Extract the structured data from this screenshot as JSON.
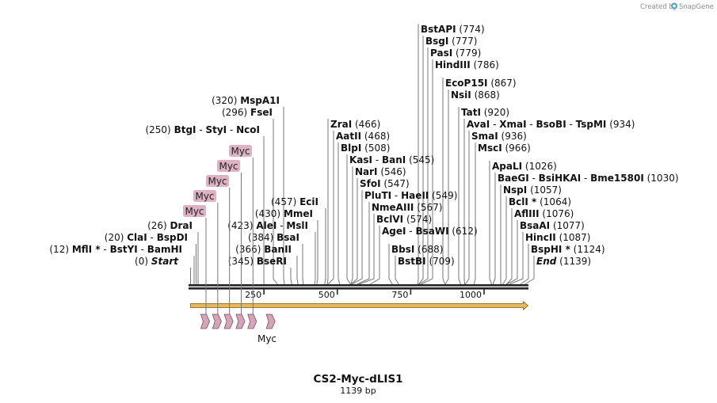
{
  "credit": {
    "text": "Created by",
    "brand": "SnapGene"
  },
  "title": "CS2-Myc-dLIS1",
  "length_label": "1139 bp",
  "sequence_length": 1139,
  "axis_ticks": [
    {
      "value": 250,
      "label": "250"
    },
    {
      "value": 500,
      "label": "500"
    },
    {
      "value": 750,
      "label": "750"
    },
    {
      "value": 1000,
      "label": "1000"
    }
  ],
  "colors": {
    "backbone": "#222222",
    "leader": "#777777",
    "myc_fill": "#d4a5b8",
    "myc_stroke": "#7a4a62",
    "orf_fill": "#e8b860",
    "orf_stroke": "#7a5a10",
    "tag_fill": "#dcb2c4"
  },
  "left_sites": [
    {
      "pos": 0,
      "position_label": "(0)",
      "parts": [
        {
          "name": "Start",
          "italic": true
        }
      ]
    },
    {
      "pos": 12,
      "position_label": "(12)",
      "parts": [
        {
          "name": "MflI",
          "star": true
        },
        {
          "name": "BstYI"
        },
        {
          "name": "BamHI"
        }
      ]
    },
    {
      "pos": 20,
      "position_label": "(20)",
      "parts": [
        {
          "name": "ClaI"
        },
        {
          "name": "BspDI"
        }
      ]
    },
    {
      "pos": 26,
      "position_label": "(26)",
      "parts": [
        {
          "name": "DraI"
        }
      ]
    },
    {
      "pos": 250,
      "position_label": "(250)",
      "parts": [
        {
          "name": "BtgI"
        },
        {
          "name": "StyI"
        },
        {
          "name": "NcoI"
        }
      ]
    },
    {
      "pos": 296,
      "position_label": "(296)",
      "parts": [
        {
          "name": "FseI"
        }
      ]
    },
    {
      "pos": 320,
      "position_label": "(320)",
      "parts": [
        {
          "name": "MspA1I"
        }
      ]
    },
    {
      "pos": 345,
      "position_label": "(345)",
      "parts": [
        {
          "name": "BseRI"
        }
      ]
    },
    {
      "pos": 366,
      "position_label": "(366)",
      "parts": [
        {
          "name": "BanII"
        }
      ]
    },
    {
      "pos": 384,
      "position_label": "(384)",
      "parts": [
        {
          "name": "BsaI"
        }
      ]
    },
    {
      "pos": 423,
      "position_label": "(423)",
      "parts": [
        {
          "name": "AleI"
        },
        {
          "name": "MslI"
        }
      ]
    },
    {
      "pos": 430,
      "position_label": "(430)",
      "parts": [
        {
          "name": "MmeI"
        }
      ]
    },
    {
      "pos": 457,
      "position_label": "(457)",
      "parts": [
        {
          "name": "EciI"
        }
      ]
    }
  ],
  "right_sites": [
    {
      "pos": 466,
      "position_label": "(466)",
      "parts": [
        {
          "name": "ZraI"
        }
      ]
    },
    {
      "pos": 468,
      "position_label": "(468)",
      "parts": [
        {
          "name": "AatII"
        }
      ]
    },
    {
      "pos": 508,
      "position_label": "(508)",
      "parts": [
        {
          "name": "BlpI"
        }
      ]
    },
    {
      "pos": 545,
      "position_label": "(545)",
      "parts": [
        {
          "name": "KasI"
        },
        {
          "name": "BanI"
        }
      ]
    },
    {
      "pos": 546,
      "position_label": "(546)",
      "parts": [
        {
          "name": "NarI"
        }
      ]
    },
    {
      "pos": 547,
      "position_label": "(547)",
      "parts": [
        {
          "name": "SfoI"
        }
      ]
    },
    {
      "pos": 549,
      "position_label": "(549)",
      "parts": [
        {
          "name": "PluTI"
        },
        {
          "name": "HaeII"
        }
      ]
    },
    {
      "pos": 567,
      "position_label": "(567)",
      "parts": [
        {
          "name": "NmeAIII"
        }
      ]
    },
    {
      "pos": 574,
      "position_label": "(574)",
      "parts": [
        {
          "name": "BclVI"
        }
      ]
    },
    {
      "pos": 612,
      "position_label": "(612)",
      "parts": [
        {
          "name": "AgeI"
        },
        {
          "name": "BsaWI"
        }
      ]
    },
    {
      "pos": 688,
      "position_label": "(688)",
      "parts": [
        {
          "name": "BbsI"
        }
      ]
    },
    {
      "pos": 709,
      "position_label": "(709)",
      "parts": [
        {
          "name": "BstBI"
        }
      ]
    },
    {
      "pos": 774,
      "position_label": "(774)",
      "parts": [
        {
          "name": "BstAPI"
        }
      ]
    },
    {
      "pos": 777,
      "position_label": "(777)",
      "parts": [
        {
          "name": "BsgI"
        }
      ]
    },
    {
      "pos": 779,
      "position_label": "(779)",
      "parts": [
        {
          "name": "PasI"
        }
      ]
    },
    {
      "pos": 786,
      "position_label": "(786)",
      "parts": [
        {
          "name": "HindIII"
        }
      ]
    },
    {
      "pos": 867,
      "position_label": "(867)",
      "parts": [
        {
          "name": "EcoP15I"
        }
      ]
    },
    {
      "pos": 868,
      "position_label": "(868)",
      "parts": [
        {
          "name": "NsiI"
        }
      ]
    },
    {
      "pos": 920,
      "position_label": "(920)",
      "parts": [
        {
          "name": "TatI"
        }
      ]
    },
    {
      "pos": 934,
      "position_label": "(934)",
      "parts": [
        {
          "name": "AvaI"
        },
        {
          "name": "XmaI"
        },
        {
          "name": "BsoBI"
        },
        {
          "name": "TspMI"
        }
      ]
    },
    {
      "pos": 936,
      "position_label": "(936)",
      "parts": [
        {
          "name": "SmaI"
        }
      ]
    },
    {
      "pos": 966,
      "position_label": "(966)",
      "parts": [
        {
          "name": "MscI"
        }
      ]
    },
    {
      "pos": 1026,
      "position_label": "(1026)",
      "parts": [
        {
          "name": "ApaLI"
        }
      ]
    },
    {
      "pos": 1030,
      "position_label": "(1030)",
      "parts": [
        {
          "name": "BaeGI"
        },
        {
          "name": "BsiHKAI"
        },
        {
          "name": "Bme1580I"
        }
      ]
    },
    {
      "pos": 1057,
      "position_label": "(1057)",
      "parts": [
        {
          "name": "NspI"
        }
      ]
    },
    {
      "pos": 1064,
      "position_label": "(1064)",
      "parts": [
        {
          "name": "BclI",
          "star": true
        }
      ]
    },
    {
      "pos": 1076,
      "position_label": "(1076)",
      "parts": [
        {
          "name": "AflIII"
        }
      ]
    },
    {
      "pos": 1077,
      "position_label": "(1077)",
      "parts": [
        {
          "name": "BsaAI"
        }
      ]
    },
    {
      "pos": 1087,
      "position_label": "(1087)",
      "parts": [
        {
          "name": "HincII"
        }
      ]
    },
    {
      "pos": 1124,
      "position_label": "(1124)",
      "parts": [
        {
          "name": "BspHI",
          "star": true
        }
      ]
    },
    {
      "pos": 1139,
      "position_label": "(1139)",
      "parts": [
        {
          "name": "End",
          "italic": true
        }
      ]
    }
  ],
  "orf": {
    "start": 0,
    "end": 1139,
    "direction": "forward"
  },
  "myc_tags": [
    {
      "start": 35,
      "end": 65,
      "label": "Myc"
    },
    {
      "start": 75,
      "end": 105,
      "label": "Myc"
    },
    {
      "start": 115,
      "end": 145,
      "label": "Myc"
    },
    {
      "start": 155,
      "end": 185,
      "label": "Myc"
    },
    {
      "start": 195,
      "end": 225,
      "label": "Myc"
    },
    {
      "start": 258,
      "end": 288,
      "label": "Myc"
    }
  ],
  "feature_label": "Myc"
}
